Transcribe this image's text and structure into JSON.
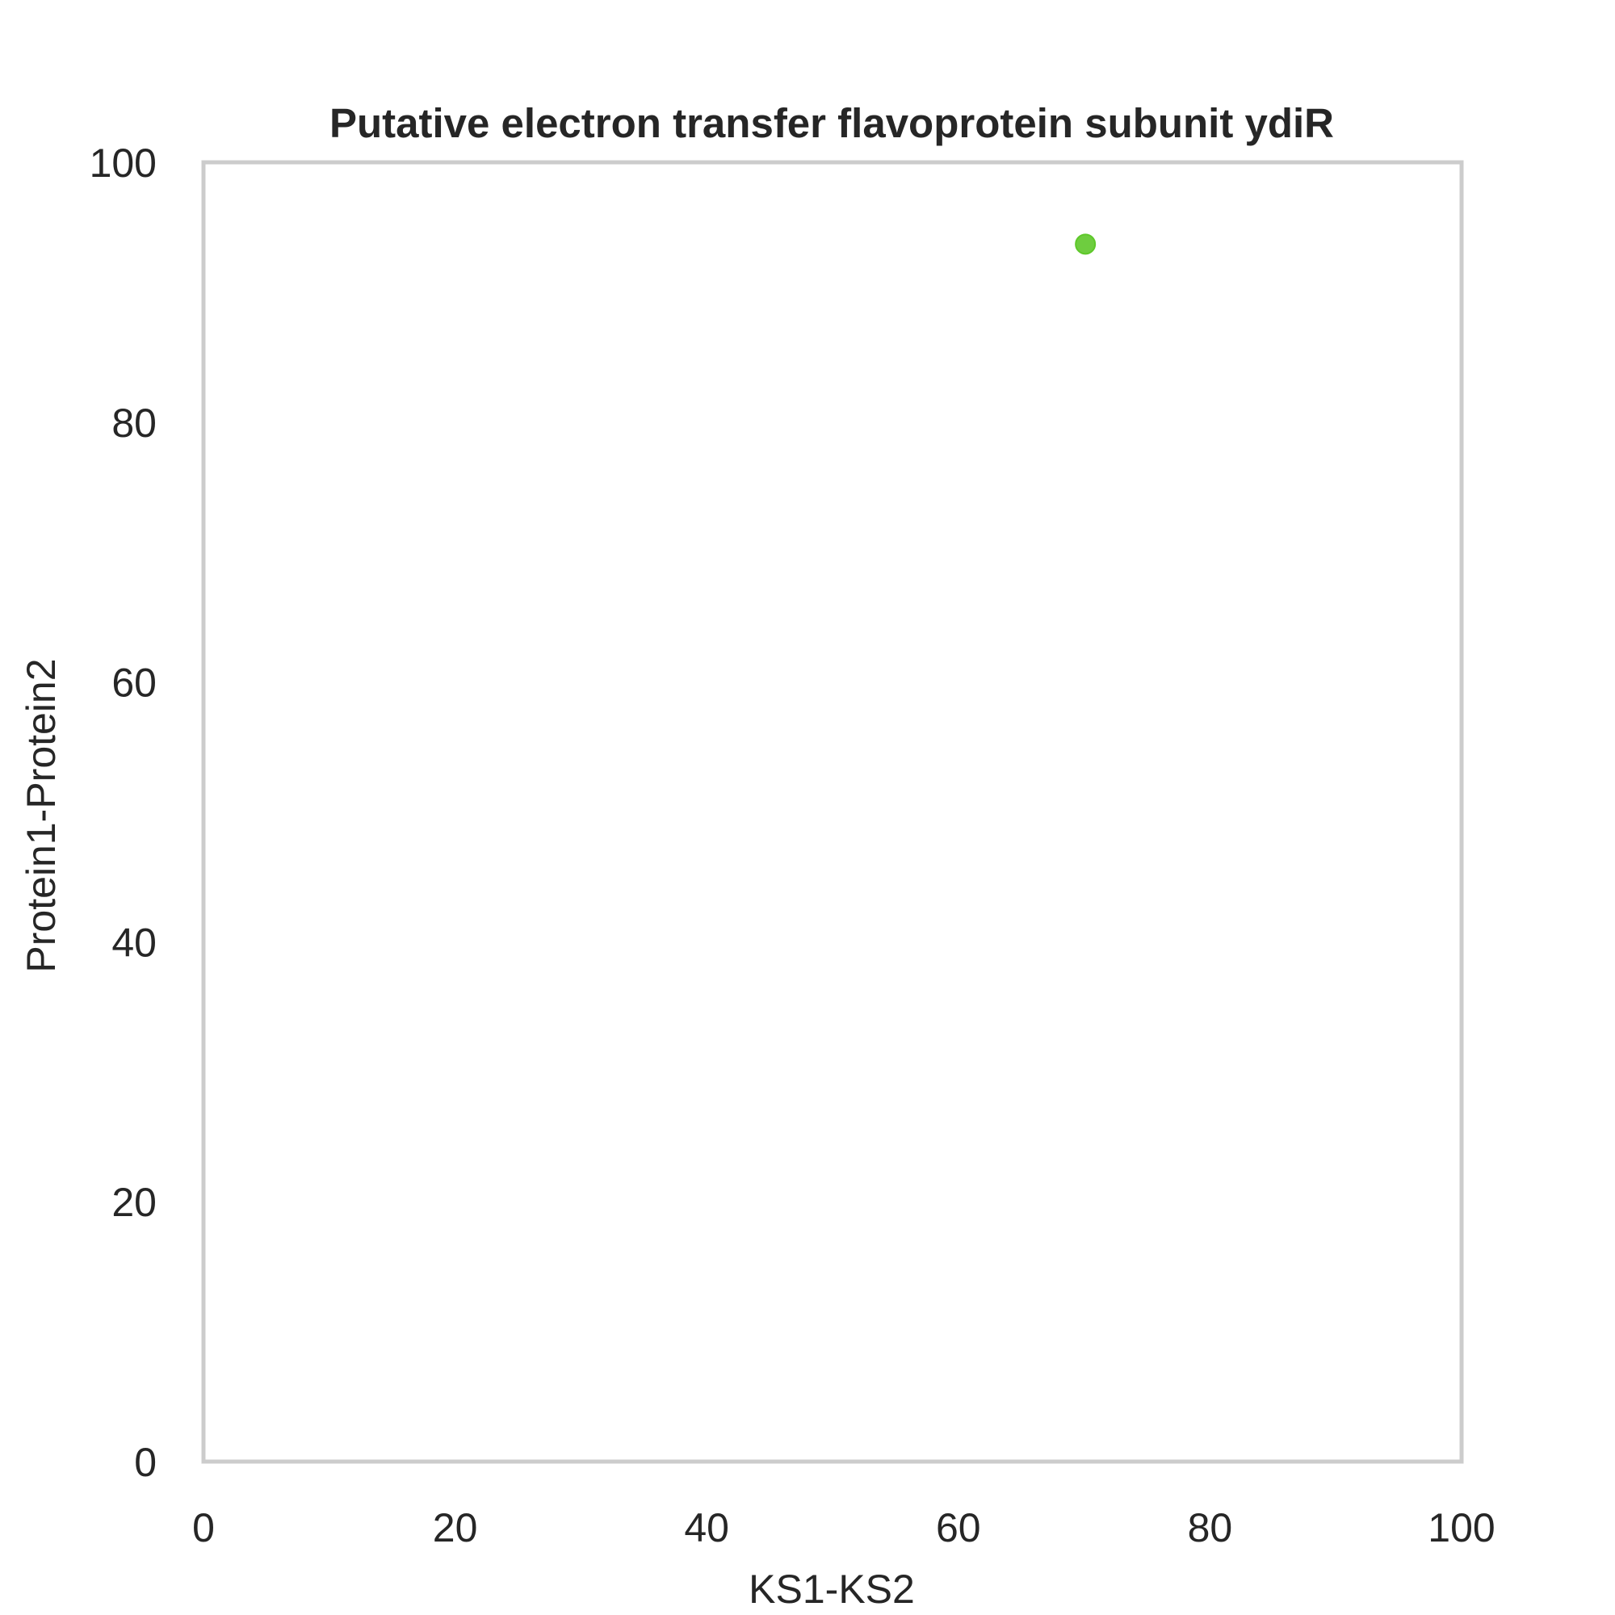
{
  "chart_data": {
    "type": "scatter",
    "title": "Putative electron transfer flavoprotein subunit ydiR",
    "xlabel": "KS1-KS2",
    "ylabel": "Protein1-Protein2",
    "xlim": [
      0,
      100
    ],
    "ylim": [
      0,
      100
    ],
    "xticks": [
      0,
      20,
      40,
      60,
      80,
      100
    ],
    "yticks": [
      0,
      20,
      40,
      60,
      80,
      100
    ],
    "grid": false,
    "series": [
      {
        "name": "ydiR",
        "color": "#5ec82a",
        "points": [
          {
            "x": 70.1,
            "y": 93.7
          }
        ]
      }
    ],
    "frame_color": "#cccccc"
  }
}
